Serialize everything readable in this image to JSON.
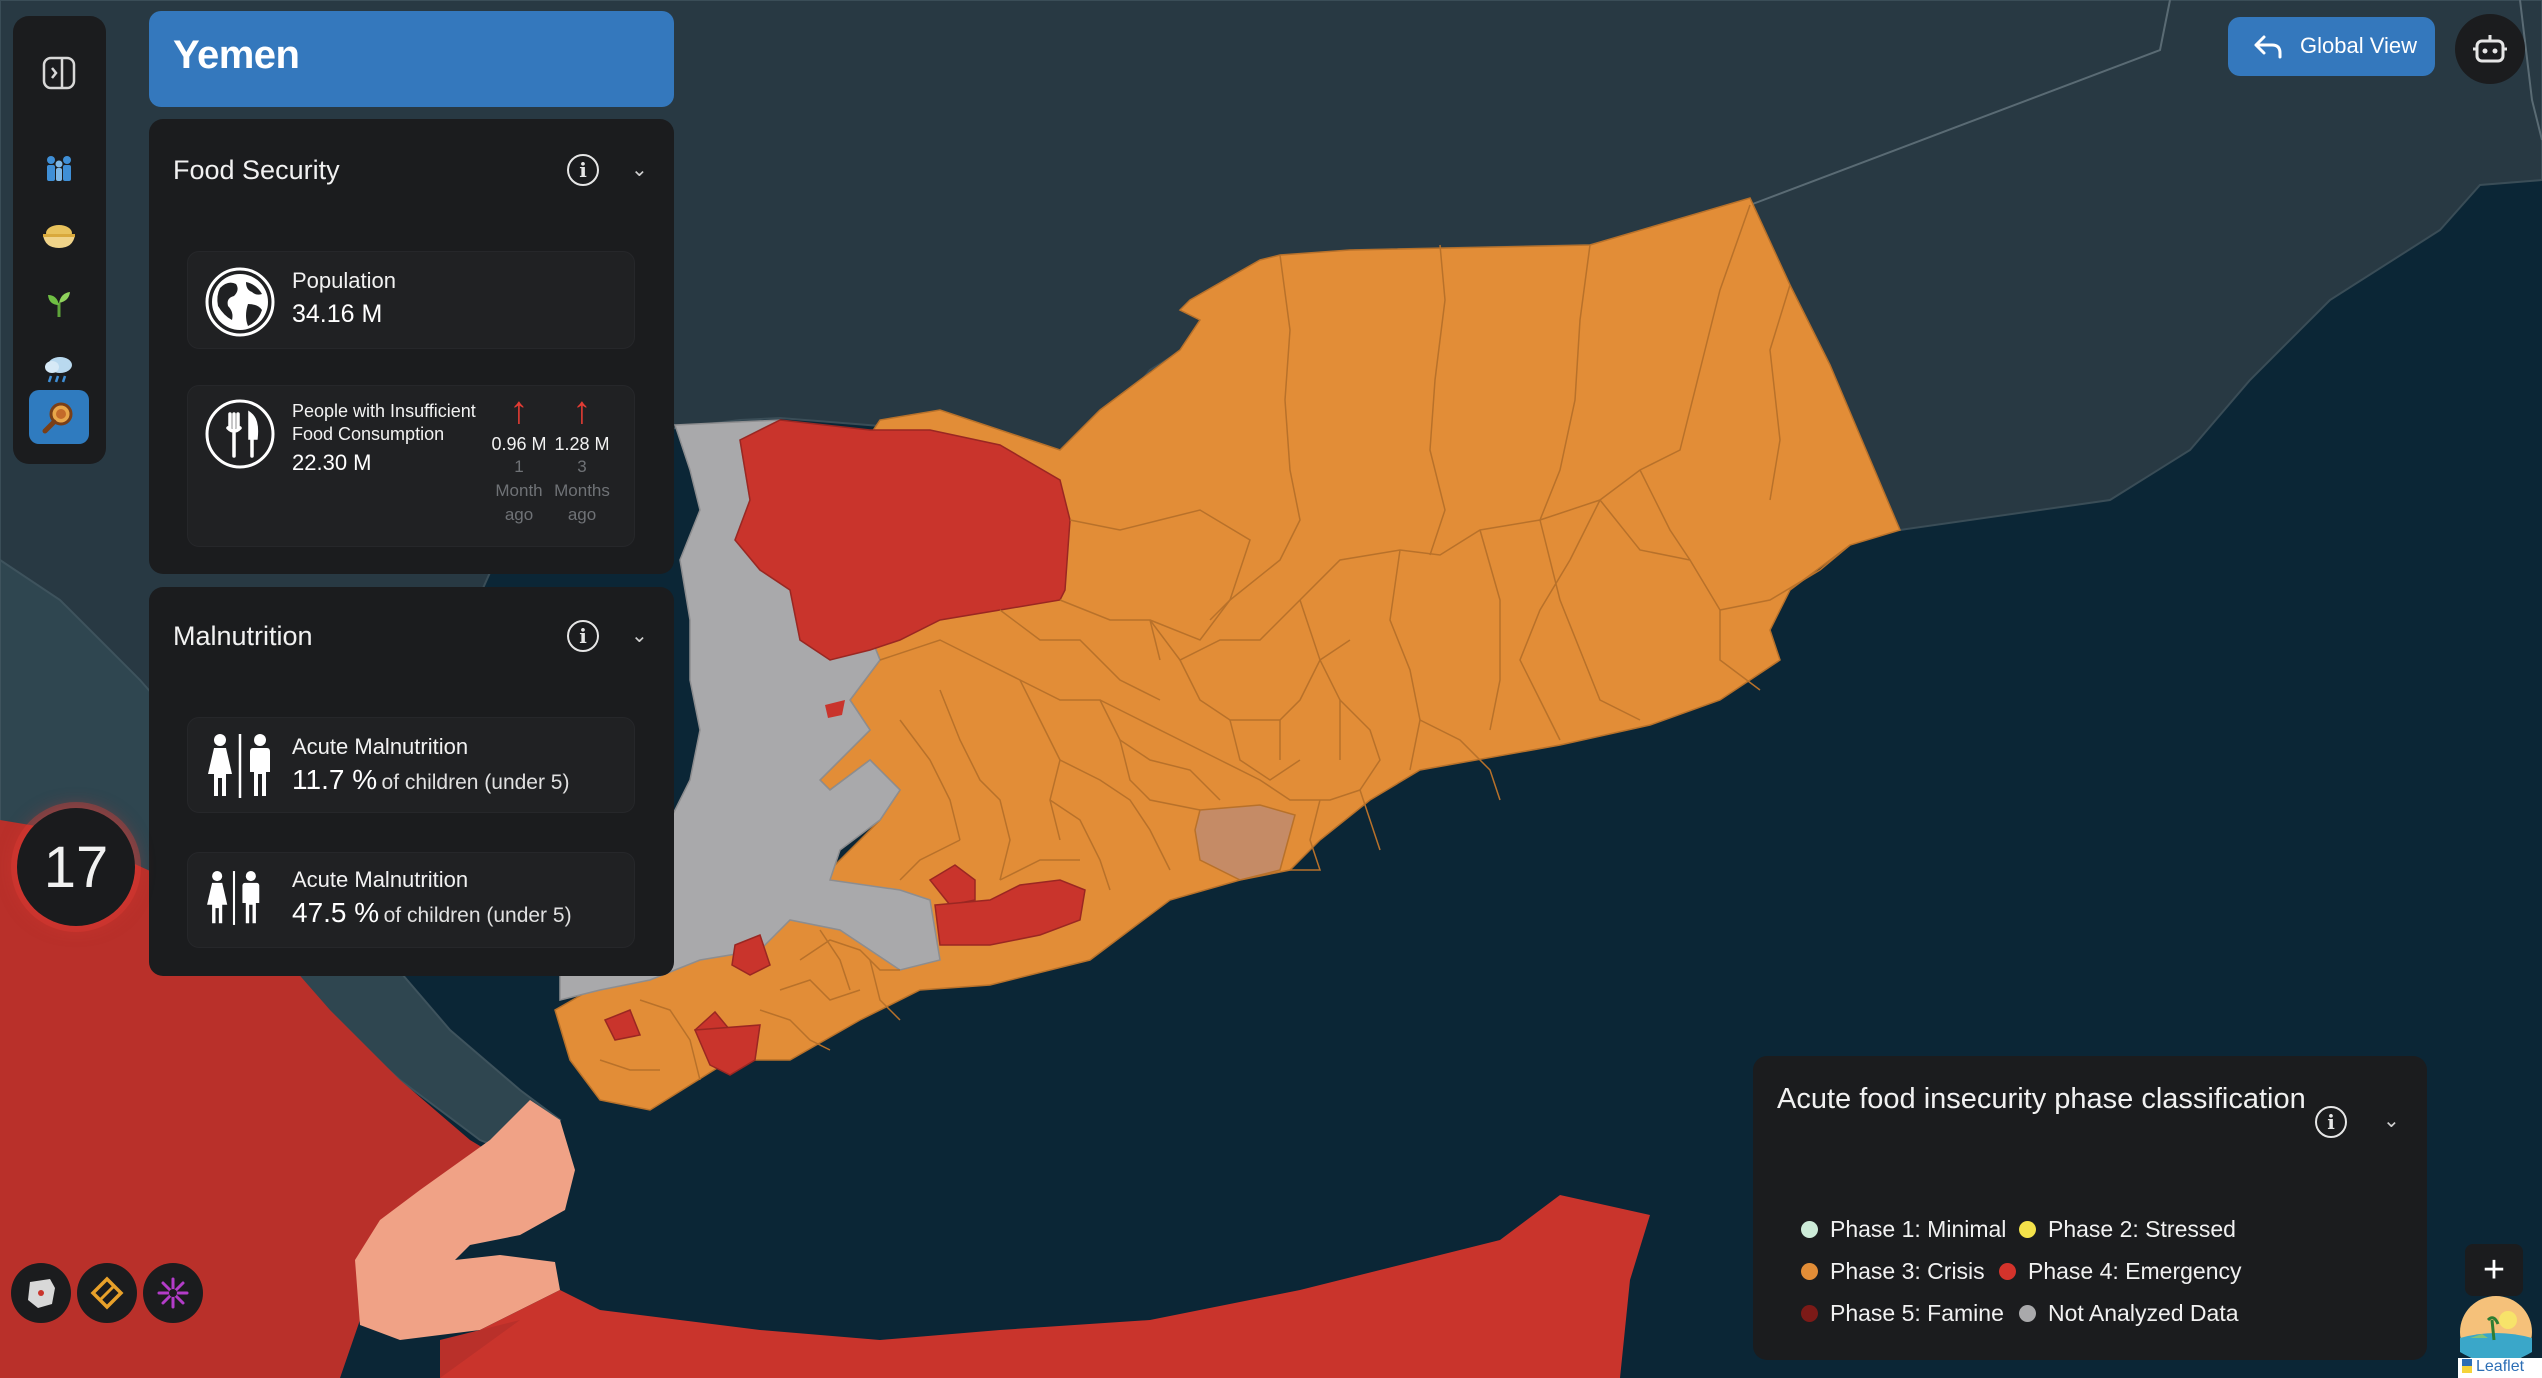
{
  "country": {
    "name": "Yemen"
  },
  "food_security": {
    "title": "Food Security",
    "population": {
      "label": "Population",
      "value": "34.16 M"
    },
    "insufficient": {
      "label_line1": "People with Insufficient",
      "label_line2": "Food Consumption",
      "value": "22.30 M",
      "trends": [
        {
          "value": "0.96 M",
          "period": "1\nMonth\nago",
          "direction": "up"
        },
        {
          "value": "1.28 M",
          "period": "3\nMonths\nago",
          "direction": "up"
        }
      ]
    }
  },
  "malnutrition": {
    "title": "Malnutrition",
    "cards": [
      {
        "label": "Acute Malnutrition",
        "value": "11.7 %",
        "suffix": "of children (under 5)"
      },
      {
        "label": "Acute Malnutrition",
        "value": "47.5 %",
        "suffix": "of children (under 5)"
      }
    ]
  },
  "legend": {
    "title": "Acute food insecurity phase classification",
    "items": [
      {
        "label": "Phase 1: Minimal",
        "color": "#cdebd8"
      },
      {
        "label": "Phase 2: Stressed",
        "color": "#f4e24a"
      },
      {
        "label": "Phase 3: Crisis",
        "color": "#e28d37"
      },
      {
        "label": "Phase 4: Emergency",
        "color": "#d4332b"
      },
      {
        "label": "Phase 5: Famine",
        "color": "#7c1a17"
      },
      {
        "label": "Not Analyzed Data",
        "color": "#a9a9ab"
      }
    ]
  },
  "controls": {
    "global_view": "Global View",
    "counter": "17",
    "zoom_in": "+",
    "attribution": "Leaflet"
  },
  "sidebar": {
    "items": [
      "collapse-icon",
      "people-icon",
      "food-bowl-icon",
      "sprout-icon",
      "weather-icon",
      "search-location-icon"
    ],
    "active": "search-location-icon"
  },
  "colors": {
    "accent": "#3478bd",
    "panel": "#1b1c1e",
    "sea": "#0b2636",
    "land_other": "#283943",
    "phase3": "#e28d37",
    "phase4": "#c9342c",
    "not_analyzed": "#a9a9ab",
    "highlight_pink": "#f0a286"
  }
}
